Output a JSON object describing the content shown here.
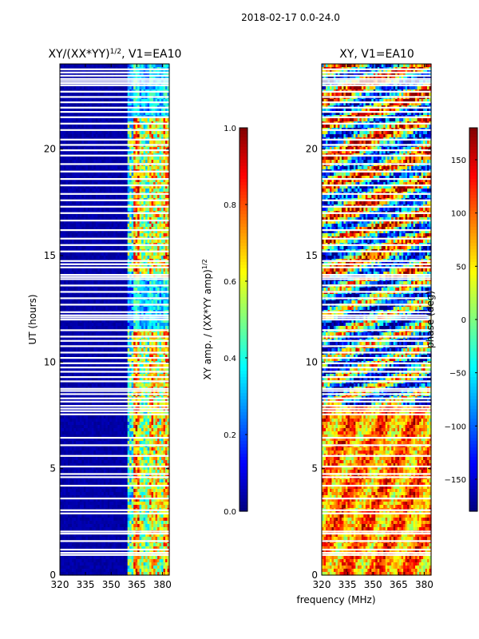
{
  "suptitle": "2018-02-17 0.0-24.0",
  "colors": {
    "jet": [
      "#00007f",
      "#0000ff",
      "#007fff",
      "#00ffff",
      "#7fff7f",
      "#ffff00",
      "#ff7f00",
      "#ff0000",
      "#7f0000"
    ],
    "gap": "#ffffff"
  },
  "chart_data": [
    {
      "type": "heatmap",
      "title": "XY/(XX*YY)^1/2, V1=EA10",
      "title_main": "XY/(XX*YY)",
      "title_sup": "1/2",
      "title_tail": ", V1=EA10",
      "xlabel": "frequency (MHz)",
      "ylabel": "UT (hours)",
      "xlim": [
        320,
        384
      ],
      "ylim": [
        0,
        24
      ],
      "xticks": [
        320,
        335,
        350,
        365,
        380
      ],
      "yticks": [
        0,
        5,
        10,
        15,
        20
      ],
      "signal_band_mhz": [
        360,
        384
      ],
      "colorbar": {
        "label": "XY amp. / (XX*YY amp)^1/2",
        "label_main": "XY amp. / (XX*YY amp)",
        "label_sup": "1/2",
        "range": [
          0.0,
          1.0
        ],
        "ticks": [
          0.0,
          0.2,
          0.4,
          0.6,
          0.8,
          1.0
        ],
        "tick_labels": [
          "0.0",
          "0.2",
          "0.4",
          "0.6",
          "0.8",
          "1.0"
        ]
      }
    },
    {
      "type": "heatmap",
      "title": "XY, V1=EA10",
      "xlabel": "frequency (MHz)",
      "ylabel": "",
      "xlim": [
        320,
        384
      ],
      "ylim": [
        0,
        24
      ],
      "xticks": [
        320,
        335,
        350,
        365,
        380
      ],
      "yticks": [
        0,
        5,
        10,
        15,
        20
      ],
      "colorbar": {
        "label": "phase (deg)",
        "range": [
          -180,
          180
        ],
        "ticks": [
          -150,
          -100,
          -50,
          0,
          50,
          100,
          150
        ],
        "tick_labels": [
          "−150",
          "−100",
          "−50",
          "0",
          "50",
          "100",
          "150"
        ]
      }
    }
  ],
  "flagged_ut_hours": [
    0.95,
    1.05,
    1.2,
    1.6,
    1.95,
    2.05,
    2.9,
    3.05,
    3.6,
    4.2,
    4.6,
    4.75,
    5.1,
    5.6,
    6.1,
    6.45,
    7.55,
    7.7,
    7.82,
    7.95,
    8.15,
    8.3,
    8.5,
    8.65,
    8.75,
    9.1,
    9.3,
    9.55,
    9.75,
    9.95,
    10.2,
    10.45,
    10.75,
    11.0,
    11.2,
    11.5,
    12.0,
    12.1,
    12.2,
    12.35,
    12.7,
    13.0,
    13.3,
    13.6,
    13.9,
    14.0,
    14.1,
    14.45,
    14.6,
    14.75,
    15.2,
    15.5,
    15.8,
    16.2,
    16.65,
    17.0,
    17.3,
    17.6,
    17.9,
    18.3,
    18.6,
    18.95,
    19.3,
    19.7,
    19.95,
    20.2,
    20.45,
    20.9,
    21.2,
    21.5,
    21.75,
    21.95,
    22.2,
    22.45,
    22.7,
    23.0,
    23.1,
    23.2,
    23.3,
    23.45,
    23.6,
    23.75
  ]
}
